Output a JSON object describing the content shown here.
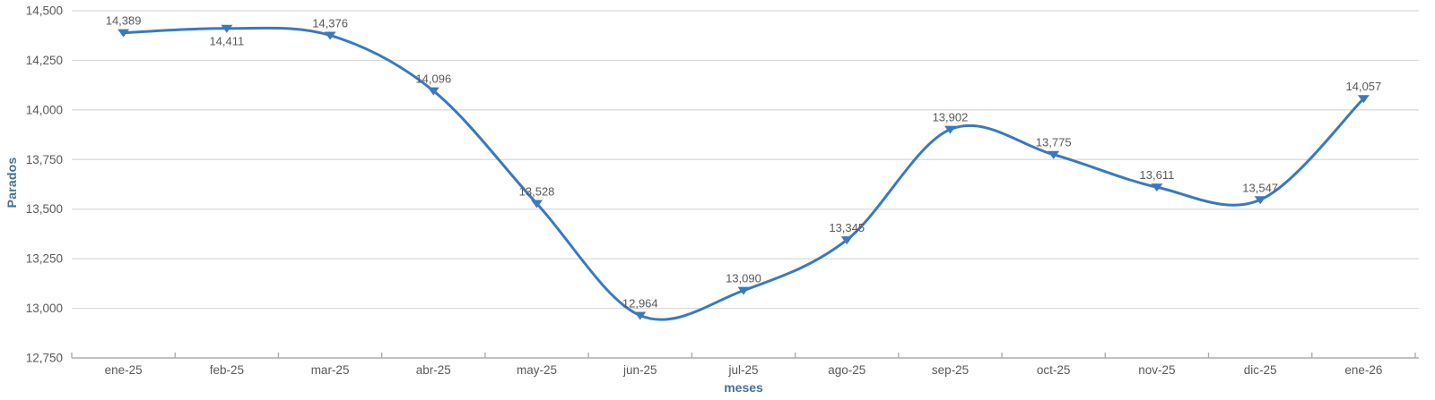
{
  "chart_data": {
    "type": "line",
    "title": "",
    "xlabel": "meses",
    "ylabel": "Parados",
    "categories": [
      "ene-25",
      "feb-25",
      "mar-25",
      "abr-25",
      "may-25",
      "jun-25",
      "jul-25",
      "ago-25",
      "sep-25",
      "oct-25",
      "nov-25",
      "dic-25",
      "ene-26"
    ],
    "series": [
      {
        "name": "Parados",
        "values": [
          14389,
          14411,
          14376,
          14096,
          13528,
          12964,
          13090,
          13345,
          13902,
          13775,
          13611,
          13547,
          14057
        ],
        "color": "#3a79be"
      }
    ],
    "data_labels": [
      "14,389",
      "14,411",
      "14,376",
      "14,096",
      "13,528",
      "12,964",
      "13,090",
      "13,345",
      "13,902",
      "13,775",
      "13,611",
      "13,547",
      "14,057"
    ],
    "data_label_positions": [
      "above",
      "below",
      "above",
      "above",
      "above",
      "above",
      "above",
      "above",
      "above",
      "above",
      "above",
      "above",
      "above"
    ],
    "ylim": [
      12750,
      14500
    ],
    "ytick_step": 250,
    "yticks": [
      12750,
      13000,
      13250,
      13500,
      13750,
      14000,
      14250,
      14500
    ],
    "ytick_labels": [
      "12,750",
      "13,000",
      "13,250",
      "13,500",
      "13,750",
      "14,000",
      "14,250",
      "14,500"
    ],
    "grid": "horizontal",
    "legend_position": "none",
    "marker": "triangle-down",
    "line_style": "smooth-spline",
    "colors": {
      "line": "#3a79be",
      "marker": "#3a79be",
      "data_label": "#595959",
      "tick_label": "#595959",
      "axis_title": "#41719c",
      "gridline": "#d9d9d9",
      "axis_line": "#adadad",
      "background": "#ffffff"
    }
  }
}
